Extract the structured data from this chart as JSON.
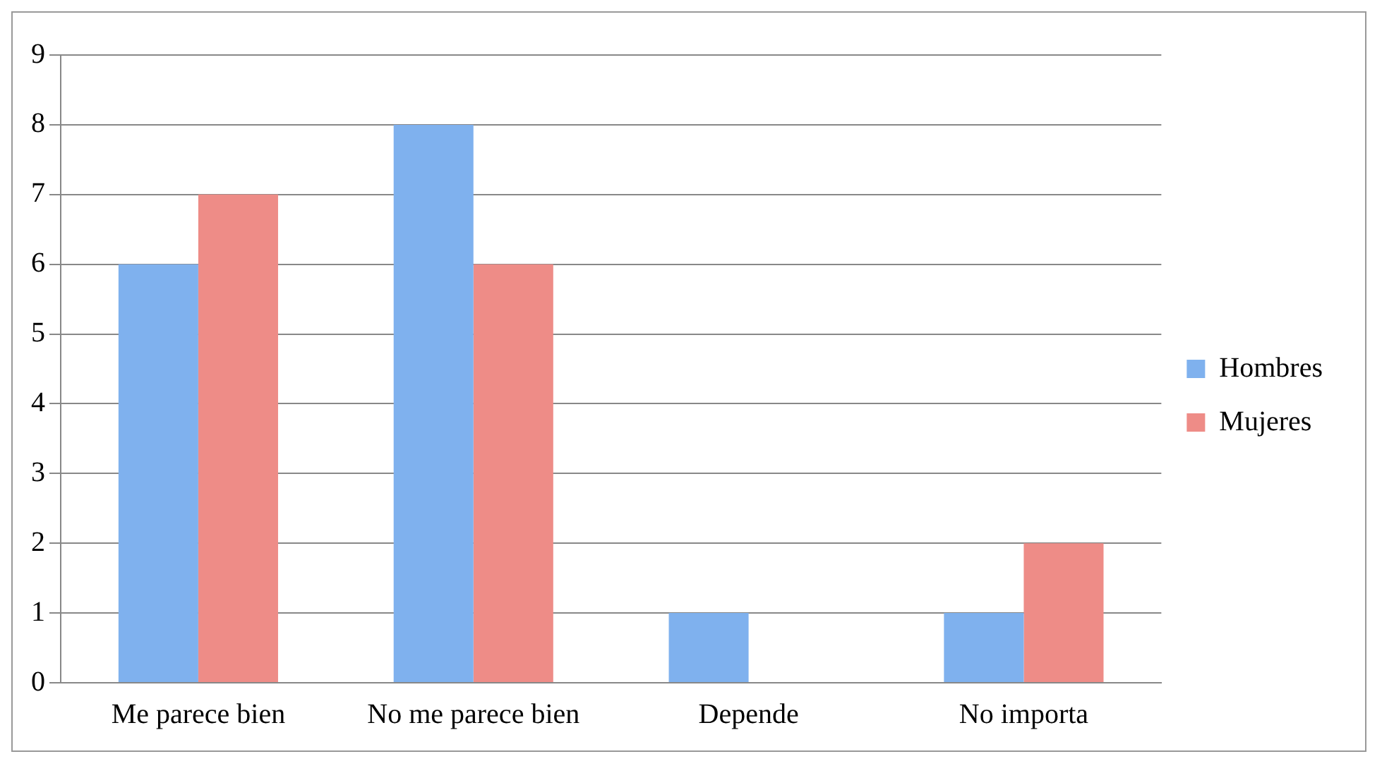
{
  "chart_data": {
    "type": "bar",
    "categories": [
      "Me parece bien",
      "No me parece bien",
      "Depende",
      "No importa"
    ],
    "series": [
      {
        "name": "Hombres",
        "color": "#7fb1ee",
        "values": [
          6,
          8,
          1,
          1
        ]
      },
      {
        "name": "Mujeres",
        "color": "#ee8c87",
        "values": [
          7,
          6,
          0,
          2
        ]
      }
    ],
    "ylim": [
      0,
      9
    ],
    "yticks": [
      0,
      1,
      2,
      3,
      4,
      5,
      6,
      7,
      8,
      9
    ],
    "grid": "y",
    "legend": "right"
  }
}
